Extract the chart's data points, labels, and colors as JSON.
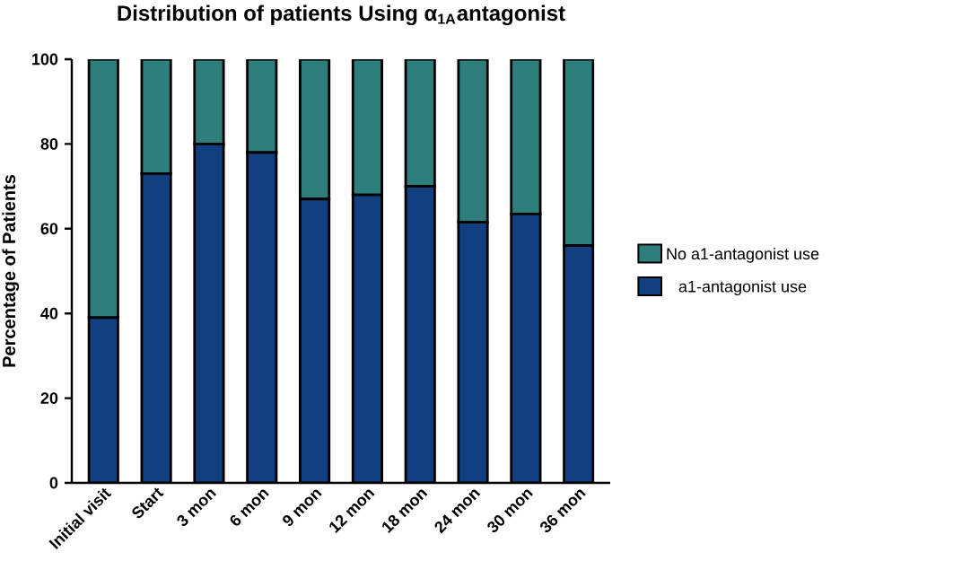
{
  "chart_data": {
    "type": "bar",
    "stacked": true,
    "title": "Distribution of patients Using α$_{1A}$antagonist",
    "ylabel": "Percentage of Patients",
    "categories": [
      "Initial visit",
      "Start",
      "3 mon",
      "6 mon",
      "9 mon",
      "12 mon",
      "18 mon",
      "24 mon",
      "30 mon",
      "36 mon"
    ],
    "series": [
      {
        "name": "a1-antagonist use",
        "color": "#123f80",
        "values": [
          39,
          73,
          80,
          78,
          67,
          68,
          70,
          61.5,
          63.5,
          56
        ]
      },
      {
        "name": "No a1-antagonist use",
        "color": "#2e7f7c",
        "values": [
          61,
          27,
          20,
          22,
          33,
          32,
          30,
          38.5,
          36.5,
          44
        ]
      }
    ],
    "ylim": [
      0,
      100
    ],
    "yticks": [
      0,
      20,
      40,
      60,
      80,
      100
    ],
    "grid": false,
    "legend": "right"
  }
}
